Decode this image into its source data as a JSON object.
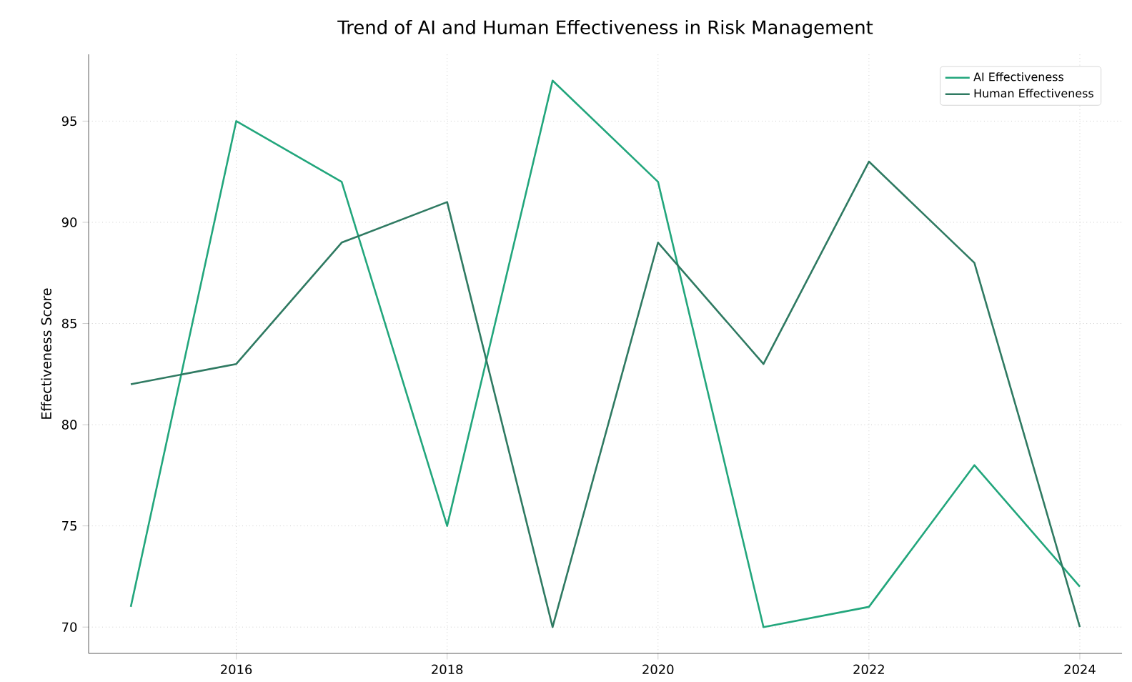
{
  "chart_data": {
    "type": "line",
    "title": "Trend of AI and Human Effectiveness in Risk Management",
    "ylabel": "Effectiveness Score",
    "x": [
      2015,
      2016,
      2017,
      2018,
      2019,
      2020,
      2021,
      2022,
      2023,
      2024
    ],
    "series": [
      {
        "name": "AI Effectiveness",
        "color": "#22a67c",
        "values": [
          71,
          95,
          92,
          75,
          97,
          92,
          70,
          71,
          78,
          72
        ]
      },
      {
        "name": "Human Effectiveness",
        "color": "#2f7a62",
        "values": [
          82,
          83,
          89,
          91,
          70,
          89,
          83,
          93,
          88,
          70
        ]
      }
    ],
    "xlim": [
      2014.6,
      2024.4
    ],
    "ylim": [
      68.7,
      98.3
    ],
    "xticks": [
      2016,
      2018,
      2020,
      2022,
      2024
    ],
    "yticks": [
      70,
      75,
      80,
      85,
      90,
      95
    ],
    "grid": true,
    "legend": "top right",
    "line_style": "solid",
    "marker": "none"
  }
}
